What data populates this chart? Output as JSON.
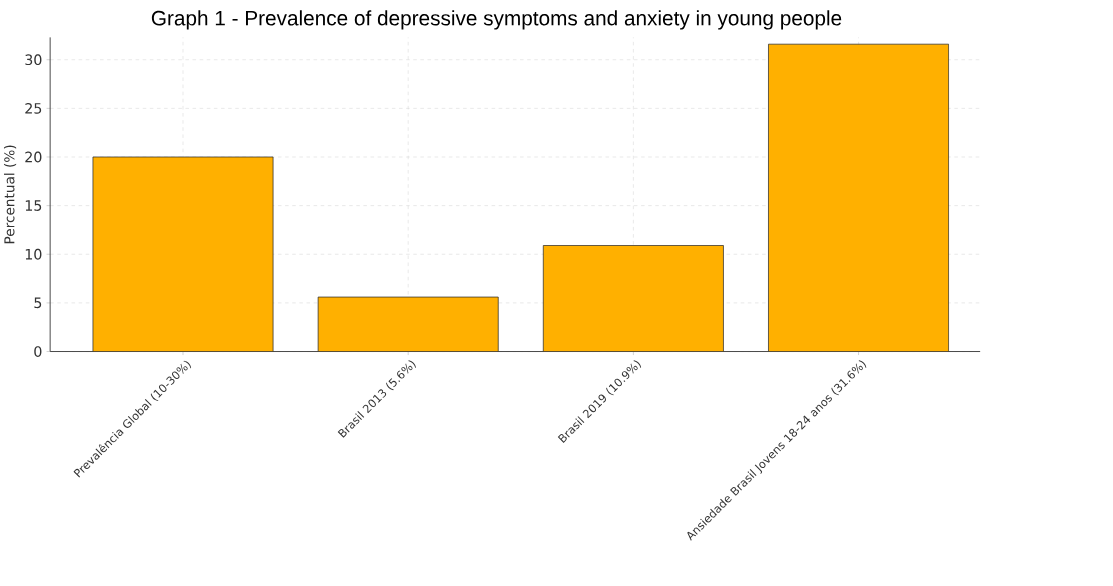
{
  "chart_data": {
    "type": "bar",
    "title": "Graph 1 - Prevalence of depressive symptoms and anxiety in young people",
    "ylabel": "Percentual (%)",
    "categories": [
      "Prevalência Global (10-30%)",
      "Brasil 2013 (5.6%)",
      "Brasil 2019 (10.9%)",
      "Ansiedade Brasil Jovens 18-24 anos (31.6%)"
    ],
    "values": [
      20,
      5.6,
      10.9,
      31.6
    ],
    "color": "#ffb000",
    "ylim": [
      0,
      32.3
    ],
    "yticks": [
      0,
      5,
      10,
      15,
      20,
      25,
      30
    ],
    "grid": true
  }
}
